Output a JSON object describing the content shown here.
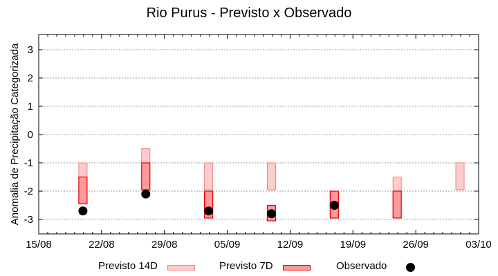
{
  "chart_data": {
    "type": "bar",
    "title": "Rio Purus - Previsto x Observado",
    "xlabel": "",
    "ylabel": "Anomalia de Precipitação Categorizada",
    "ylim": [
      -3.5,
      3.5
    ],
    "yticks": [
      3,
      2,
      1,
      0,
      -1,
      -2,
      -3
    ],
    "xticks": [
      "15/08",
      "22/08",
      "29/08",
      "05/09",
      "12/09",
      "19/09",
      "26/09",
      "03/10"
    ],
    "grid": "horizontal dotted",
    "legend_position": "bottom",
    "categories": [
      "20/08",
      "27/08",
      "03/09",
      "10/09",
      "17/09",
      "24/09",
      "01/10"
    ],
    "series": [
      {
        "name": "Previsto 14D",
        "color": "#ffcccc",
        "edge": "#f08080",
        "ranges": [
          [
            -1,
            -1.5
          ],
          [
            -0.5,
            -1
          ],
          [
            -1,
            -1.95
          ],
          [
            -1,
            -1.95
          ],
          null,
          [
            -1.5,
            -2
          ],
          [
            -1,
            -1.95
          ]
        ]
      },
      {
        "name": "Previsto 7D",
        "color": "#ff9999",
        "edge": "#e00000",
        "ranges": [
          [
            -1.5,
            -2.45
          ],
          [
            -1,
            -1.95
          ],
          [
            -2,
            -2.95
          ],
          [
            -2.5,
            -3.05
          ],
          [
            -2,
            -2.95
          ],
          [
            -2,
            -2.95
          ],
          null
        ]
      },
      {
        "name": "Observado",
        "color": "#000000",
        "values": [
          -2.7,
          -2.1,
          -2.7,
          -2.8,
          -2.5,
          null,
          null
        ]
      }
    ]
  },
  "legend": {
    "l14": "Previsto 14D",
    "l7": "Previsto 7D",
    "obs": "Observado"
  }
}
